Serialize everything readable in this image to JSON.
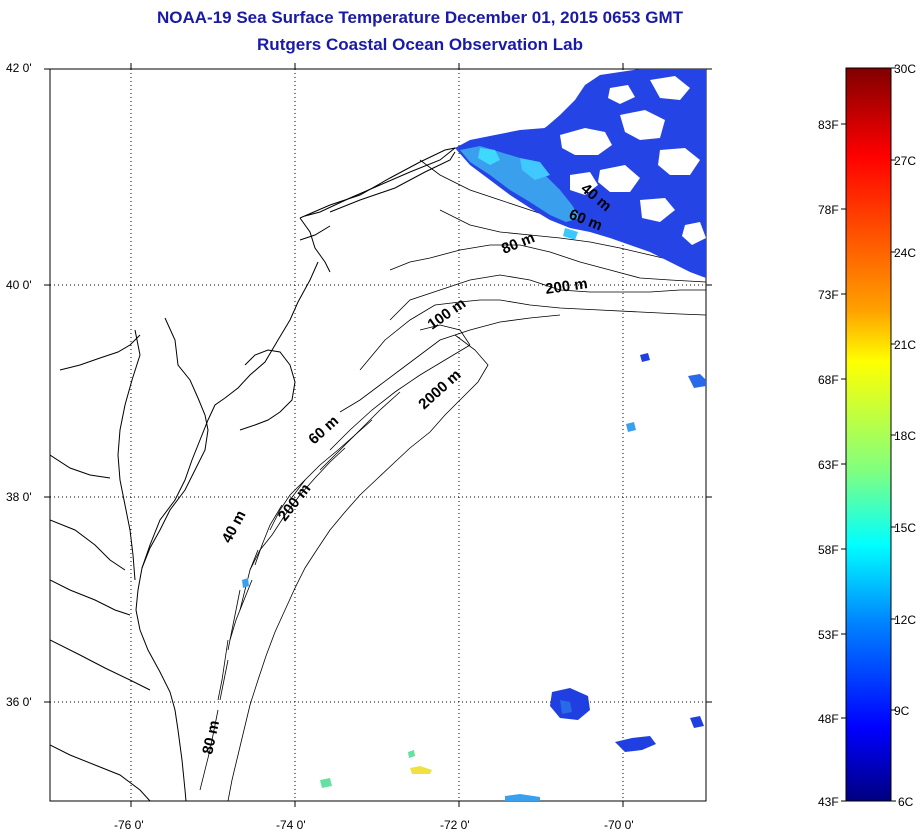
{
  "titles": {
    "line1": "NOAA-19 Sea Surface Temperature December 01, 2015 0653 GMT",
    "line2": "Rutgers Coastal Ocean Observation Lab"
  },
  "map": {
    "lat_labels": [
      "42 0'",
      "40 0'",
      "38 0'",
      "36 0'"
    ],
    "lon_labels": [
      "-76 0'",
      "-74 0'",
      "-72 0'",
      "-70 0'"
    ],
    "contour_labels": [
      "40 m",
      "40 m",
      "60 m",
      "60 m",
      "80 m",
      "80 m",
      "100 m",
      "200 m",
      "200 m",
      "2000 m"
    ]
  },
  "colorbar": {
    "celsius_labels": [
      "30C",
      "27C",
      "24C",
      "21C",
      "18C",
      "15C",
      "12C",
      "9C",
      "6C"
    ],
    "fahrenheit_labels": [
      "83F",
      "78F",
      "73F",
      "68F",
      "63F",
      "58F",
      "53F",
      "48F",
      "43F"
    ],
    "colors": [
      "#800000",
      "#ff0000",
      "#ff8000",
      "#ffff00",
      "#80ff80",
      "#00ffff",
      "#0080ff",
      "#0000ff",
      "#000080"
    ]
  },
  "colors": {
    "title": "#1a1aa8",
    "sst_cold": "#1f3fe0",
    "sst_mid": "#3aa0ee",
    "sst_warm_patch": "#3fd8ff"
  }
}
